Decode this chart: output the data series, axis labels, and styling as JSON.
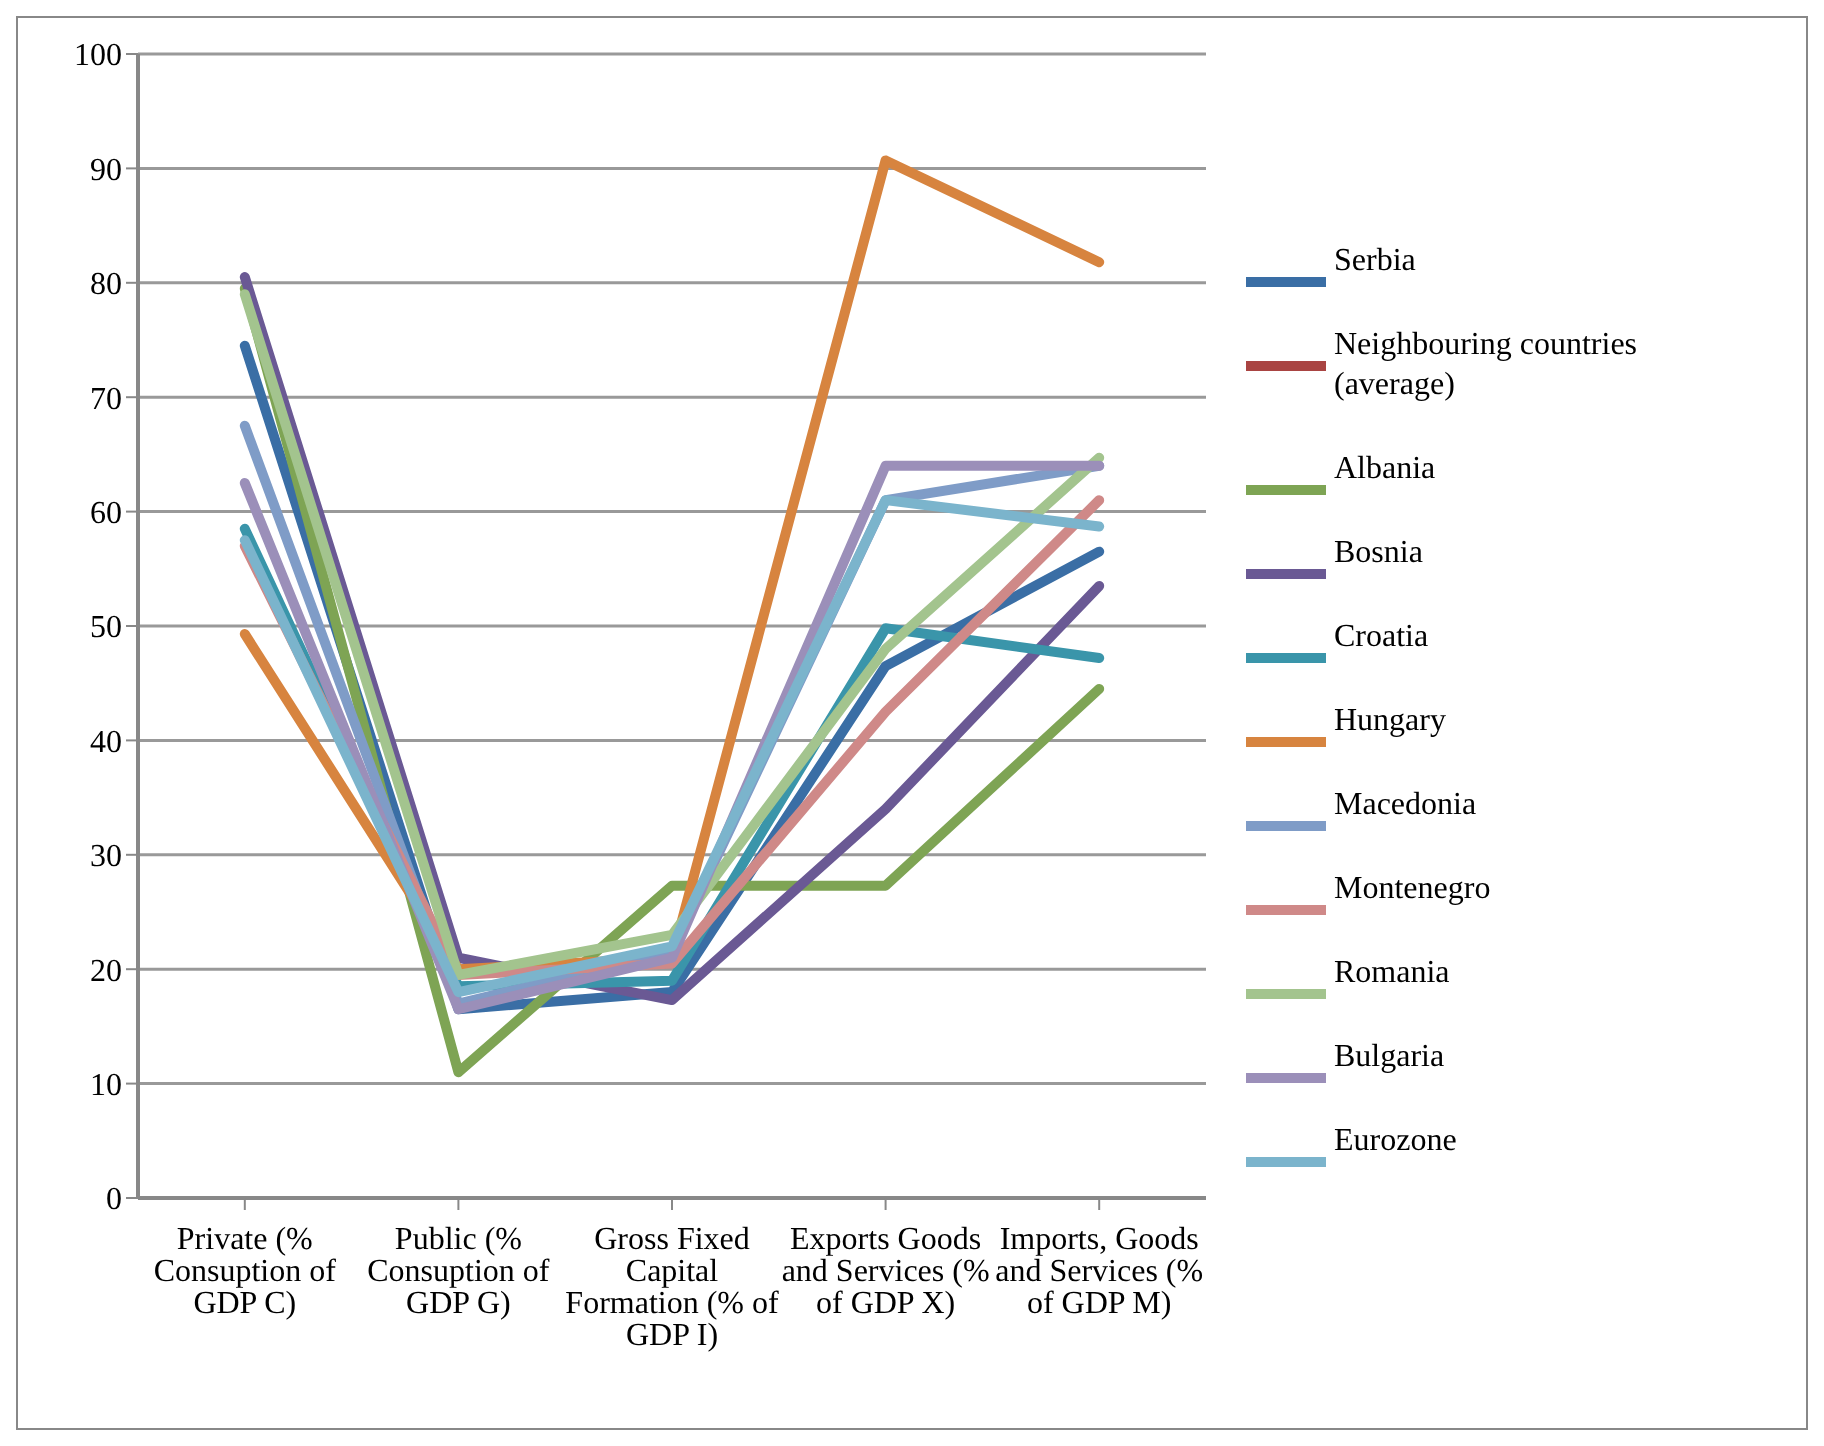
{
  "chart_data": {
    "type": "line",
    "categories": [
      "Private (% Consuption of GDP C)",
      "Public (% Consuption of GDP G)",
      "Gross Fixed Capital Formation (% of GDP I)",
      "Exports Goods and Services (% of GDP X)",
      "Imports, Goods and Services (% of GDP M)"
    ],
    "ylim": [
      0,
      100
    ],
    "yticks": [
      0,
      10,
      20,
      30,
      40,
      50,
      60,
      70,
      80,
      90,
      100
    ],
    "grid": "y",
    "legend": "right",
    "marker": "none",
    "line_style": "solid",
    "series": [
      {
        "name": "Serbia",
        "color": "#3a6ea5",
        "values": [
          74.5,
          16.5,
          18,
          46.5,
          56.5
        ]
      },
      {
        "name": "Neighbouring countries (average)",
        "color": "#a94442",
        "values": [
          null,
          null,
          null,
          null,
          null
        ]
      },
      {
        "name": "Albania",
        "color": "#7ea454",
        "values": [
          79.5,
          11,
          27.3,
          27.3,
          44.5
        ]
      },
      {
        "name": "Bosnia",
        "color": "#6a5994",
        "values": [
          80.5,
          21,
          17.3,
          34,
          53.5
        ]
      },
      {
        "name": "Croatia",
        "color": "#3a95aa",
        "values": [
          58.5,
          18.5,
          19,
          49.8,
          47.2
        ]
      },
      {
        "name": "Hungary",
        "color": "#d7843f",
        "values": [
          49.3,
          20,
          21,
          90.7,
          81.8
        ]
      },
      {
        "name": "Macedonia",
        "color": "#7f9cc7",
        "values": [
          67.5,
          17,
          21.5,
          61,
          64
        ]
      },
      {
        "name": "Montenegro",
        "color": "#cf8988",
        "values": [
          57,
          19.5,
          20.5,
          42.5,
          61
        ]
      },
      {
        "name": "Romania",
        "color": "#a3c48e",
        "values": [
          79,
          19.5,
          23,
          48,
          64.7
        ]
      },
      {
        "name": "Bulgaria",
        "color": "#9b8fb9",
        "values": [
          62.5,
          16.5,
          21,
          64,
          64
        ]
      },
      {
        "name": "Eurozone",
        "color": "#7bb4cc",
        "values": [
          57.5,
          18,
          22,
          61,
          58.7
        ]
      }
    ]
  }
}
